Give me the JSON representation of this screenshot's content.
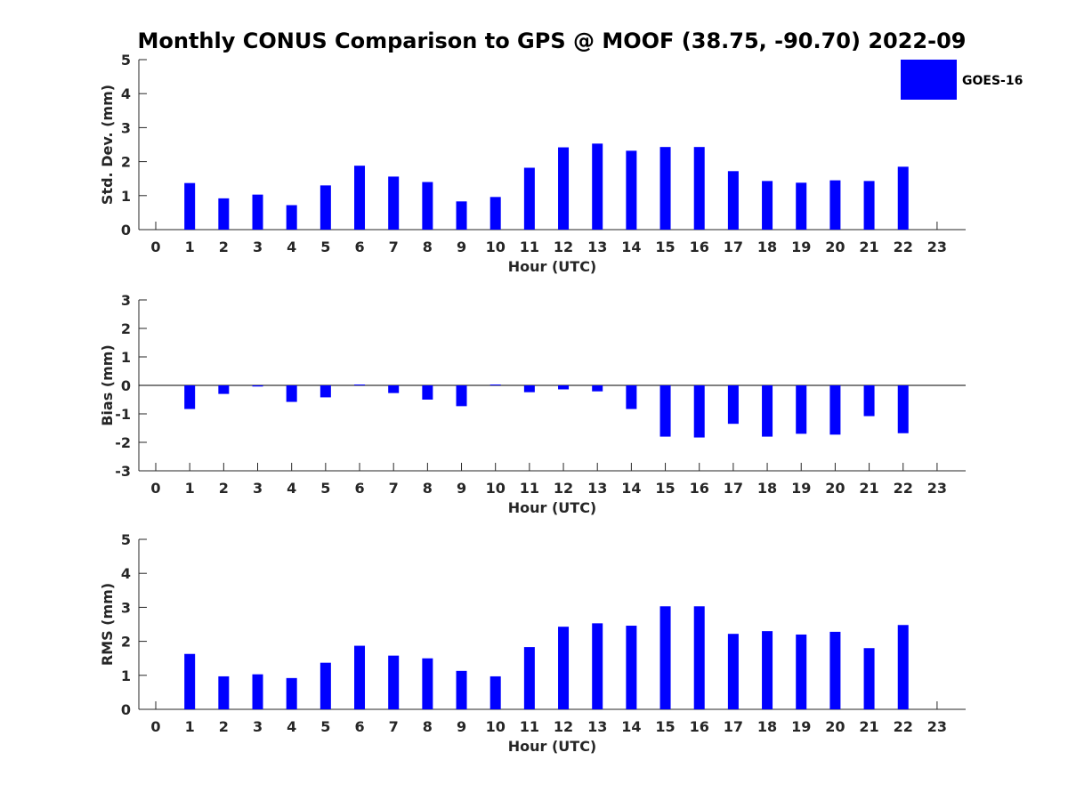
{
  "chart_data": {
    "type": "bar",
    "title": "Monthly CONUS Comparison to GPS @ MOOF (38.75, -90.70) 2022-09",
    "legend": {
      "label": "GOES-16",
      "placement": "top-right",
      "color": "#0000ff"
    },
    "categories": [
      "0",
      "1",
      "2",
      "3",
      "4",
      "5",
      "6",
      "7",
      "8",
      "9",
      "10",
      "11",
      "12",
      "13",
      "14",
      "15",
      "16",
      "17",
      "18",
      "19",
      "20",
      "21",
      "22",
      "23"
    ],
    "bar_color": "#0000ff",
    "panels": [
      {
        "id": "std",
        "ylabel": "Std. Dev. (mm)",
        "xlabel": "Hour (UTC)",
        "ylim": [
          0,
          5
        ],
        "yticks": [
          "0",
          "1",
          "2",
          "3",
          "4",
          "5"
        ],
        "values": [
          null,
          1.37,
          0.92,
          1.03,
          0.72,
          1.3,
          1.88,
          1.56,
          1.4,
          0.83,
          0.96,
          1.82,
          2.42,
          2.53,
          2.32,
          2.43,
          2.43,
          1.72,
          1.43,
          1.38,
          1.45,
          1.43,
          1.85,
          null
        ]
      },
      {
        "id": "bias",
        "ylabel": "Bias (mm)",
        "xlabel": "Hour (UTC)",
        "ylim": [
          -3,
          3
        ],
        "yticks": [
          "-3",
          "-2",
          "-1",
          "0",
          "1",
          "2",
          "3"
        ],
        "values": [
          null,
          -0.83,
          -0.3,
          -0.04,
          -0.58,
          -0.42,
          0.03,
          -0.27,
          -0.5,
          -0.73,
          0.03,
          -0.24,
          -0.14,
          -0.21,
          -0.83,
          -1.8,
          -1.83,
          -1.35,
          -1.8,
          -1.7,
          -1.73,
          -1.08,
          -1.68,
          null
        ]
      },
      {
        "id": "rms",
        "ylabel": "RMS (mm)",
        "xlabel": "Hour (UTC)",
        "ylim": [
          0,
          5
        ],
        "yticks": [
          "0",
          "1",
          "2",
          "3",
          "4",
          "5"
        ],
        "values": [
          null,
          1.63,
          0.97,
          1.03,
          0.92,
          1.37,
          1.87,
          1.58,
          1.5,
          1.13,
          0.97,
          1.83,
          2.43,
          2.53,
          2.46,
          3.03,
          3.03,
          2.22,
          2.3,
          2.2,
          2.28,
          1.8,
          2.48,
          null
        ]
      }
    ]
  }
}
